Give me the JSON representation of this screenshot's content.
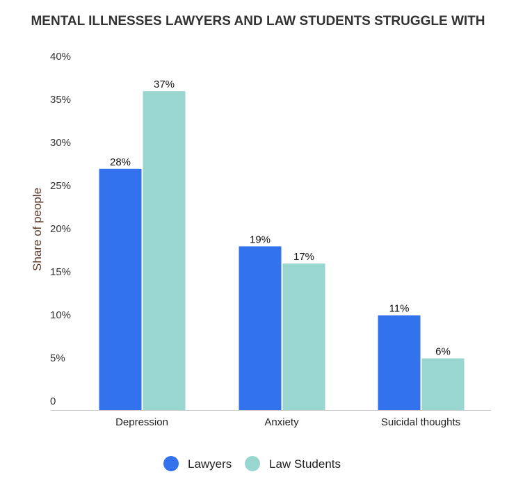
{
  "chart_data": {
    "type": "bar",
    "title": "MENTAL ILLNESSES LAWYERS AND LAW STUDENTS STRUGGLE WITH",
    "xlabel": "",
    "ylabel": "Share of people",
    "ylim": [
      0,
      40
    ],
    "yticks": [
      "0",
      "5%",
      "10%",
      "15%",
      "20%",
      "25%",
      "30%",
      "35%",
      "40%"
    ],
    "categories": [
      "Depression",
      "Anxiety",
      "Suicidal thoughts"
    ],
    "series": [
      {
        "name": "Lawyers",
        "values": [
          28,
          19,
          11
        ],
        "labels": [
          "28%",
          "19%",
          "11%"
        ],
        "color": "#3273ed"
      },
      {
        "name": "Law Students",
        "values": [
          37,
          17,
          6
        ],
        "labels": [
          "37%",
          "17%",
          "6%"
        ],
        "color": "#9ad6d0"
      }
    ],
    "grid": false,
    "legend": "bottom"
  }
}
